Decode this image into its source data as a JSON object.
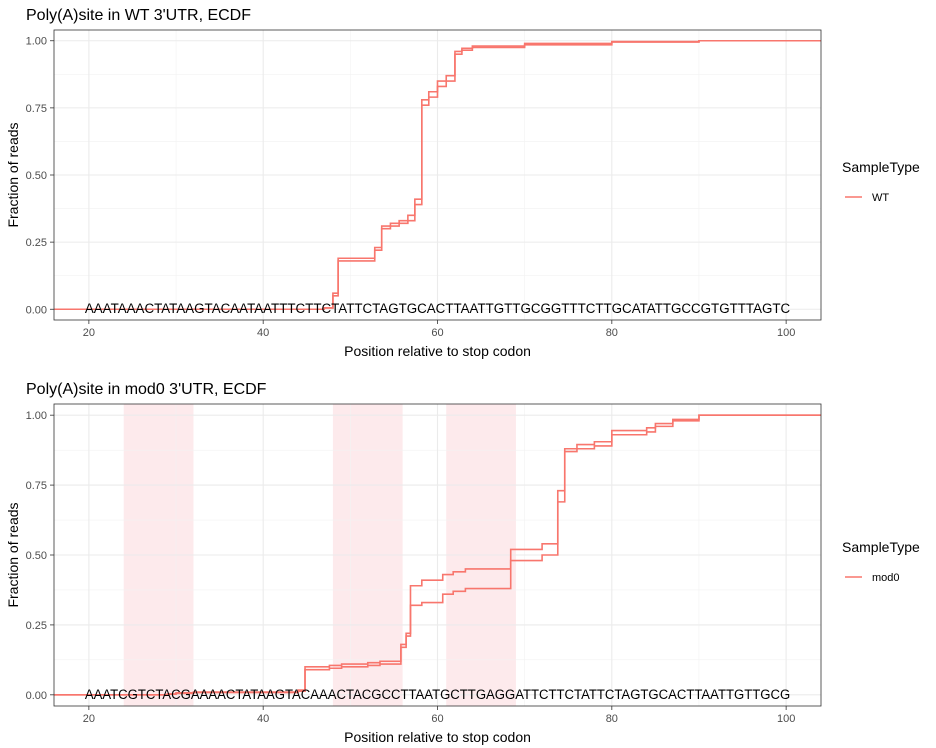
{
  "chart_data": [
    {
      "type": "line",
      "subtype": "step-ecdf",
      "title": "Poly(A)site in WT 3'UTR, ECDF",
      "xlabel": "Position relative to stop codon",
      "ylabel": "Fraction of reads",
      "xlim": [
        16,
        104
      ],
      "ylim": [
        -0.04,
        1.04
      ],
      "x_ticks": [
        20,
        40,
        60,
        80,
        100
      ],
      "x_tick_labels": [
        "20",
        "40",
        "60",
        "80",
        "100"
      ],
      "y_ticks": [
        0,
        0.25,
        0.5,
        0.75,
        1.0
      ],
      "y_tick_labels": [
        "0.00",
        "0.25",
        "0.50",
        "0.75",
        "1.00"
      ],
      "grid": true,
      "legend": {
        "title": "SampleType",
        "position": "right",
        "entries": [
          {
            "label": "WT",
            "color": "#F8766D"
          }
        ]
      },
      "sequence": "AAATAAACTATAAGTACAATAATTTCTTCTATTCTAGTGCACTTAATTGTTGCGGTTTCTTGCATATTGCCGTGTTTAGTC",
      "sequence_x_range": [
        20,
        100
      ],
      "shaded_regions": [],
      "series": [
        {
          "name": "WT",
          "color": "#F8766D",
          "points": [
            [
              16,
              0
            ],
            [
              47,
              0.005
            ],
            [
              48,
              0.05
            ],
            [
              48.6,
              0.18
            ],
            [
              52.8,
              0.22
            ],
            [
              53.6,
              0.3
            ],
            [
              54.6,
              0.31
            ],
            [
              55.6,
              0.32
            ],
            [
              56.6,
              0.33
            ],
            [
              57.4,
              0.39
            ],
            [
              58.2,
              0.76
            ],
            [
              59,
              0.79
            ],
            [
              60,
              0.83
            ],
            [
              61,
              0.85
            ],
            [
              62,
              0.95
            ],
            [
              62.8,
              0.965
            ],
            [
              64,
              0.975
            ],
            [
              70,
              0.985
            ],
            [
              80,
              0.995
            ],
            [
              90,
              1.0
            ],
            [
              104,
              1.0
            ]
          ]
        },
        {
          "name": "WT",
          "color": "#F8766D",
          "points": [
            [
              16,
              0
            ],
            [
              47,
              0.005
            ],
            [
              48,
              0.06
            ],
            [
              48.6,
              0.19
            ],
            [
              52.8,
              0.23
            ],
            [
              53.6,
              0.31
            ],
            [
              54.6,
              0.32
            ],
            [
              55.6,
              0.33
            ],
            [
              56.6,
              0.35
            ],
            [
              57.4,
              0.41
            ],
            [
              58.2,
              0.78
            ],
            [
              59,
              0.81
            ],
            [
              60,
              0.85
            ],
            [
              61,
              0.87
            ],
            [
              62,
              0.96
            ],
            [
              62.8,
              0.972
            ],
            [
              64,
              0.98
            ],
            [
              70,
              0.99
            ],
            [
              80,
              0.997
            ],
            [
              90,
              1.0
            ],
            [
              104,
              1.0
            ]
          ]
        }
      ]
    },
    {
      "type": "line",
      "subtype": "step-ecdf",
      "title": "Poly(A)site in mod0 3'UTR, ECDF",
      "xlabel": "Position relative to stop codon",
      "ylabel": "Fraction of reads",
      "xlim": [
        16,
        104
      ],
      "ylim": [
        -0.04,
        1.04
      ],
      "x_ticks": [
        20,
        40,
        60,
        80,
        100
      ],
      "x_tick_labels": [
        "20",
        "40",
        "60",
        "80",
        "100"
      ],
      "y_ticks": [
        0,
        0.25,
        0.5,
        0.75,
        1.0
      ],
      "y_tick_labels": [
        "0.00",
        "0.25",
        "0.50",
        "0.75",
        "1.00"
      ],
      "grid": true,
      "legend": {
        "title": "SampleType",
        "position": "right",
        "entries": [
          {
            "label": "mod0",
            "color": "#F8766D"
          }
        ]
      },
      "sequence": "AAATCGTCTACGAAAACTATAAGTACAAACTACGCCTTAATGCTTGAGGATTCTTCTATTCTAGTGCACTTAATTGTTGCG",
      "sequence_x_range": [
        20,
        100
      ],
      "shaded_regions": [
        [
          24,
          32
        ],
        [
          48,
          56
        ],
        [
          61,
          69
        ]
      ],
      "series": [
        {
          "name": "mod0",
          "color": "#F8766D",
          "points": [
            [
              16,
              0
            ],
            [
              29,
              0.002
            ],
            [
              30,
              0.005
            ],
            [
              32,
              0.008
            ],
            [
              44,
              0.013
            ],
            [
              44.8,
              0.09
            ],
            [
              47.6,
              0.095
            ],
            [
              49,
              0.1
            ],
            [
              52,
              0.105
            ],
            [
              53.4,
              0.11
            ],
            [
              55.8,
              0.17
            ],
            [
              56.4,
              0.21
            ],
            [
              56.9,
              0.32
            ],
            [
              58.2,
              0.33
            ],
            [
              60.6,
              0.36
            ],
            [
              61.8,
              0.37
            ],
            [
              63.2,
              0.38
            ],
            [
              68.4,
              0.48
            ],
            [
              72,
              0.5
            ],
            [
              73.8,
              0.69
            ],
            [
              74.6,
              0.87
            ],
            [
              76,
              0.88
            ],
            [
              78,
              0.89
            ],
            [
              80,
              0.93
            ],
            [
              84,
              0.94
            ],
            [
              85,
              0.96
            ],
            [
              87,
              0.98
            ],
            [
              90,
              1.0
            ],
            [
              104,
              1.0
            ]
          ]
        },
        {
          "name": "mod0",
          "color": "#F8766D",
          "points": [
            [
              16,
              0
            ],
            [
              29,
              0.003
            ],
            [
              30,
              0.007
            ],
            [
              32,
              0.01
            ],
            [
              44,
              0.017
            ],
            [
              44.8,
              0.1
            ],
            [
              47.6,
              0.105
            ],
            [
              49,
              0.11
            ],
            [
              52,
              0.115
            ],
            [
              53.4,
              0.12
            ],
            [
              55.8,
              0.18
            ],
            [
              56.4,
              0.22
            ],
            [
              56.9,
              0.39
            ],
            [
              58.2,
              0.41
            ],
            [
              60.6,
              0.43
            ],
            [
              61.8,
              0.44
            ],
            [
              63.2,
              0.45
            ],
            [
              68.4,
              0.52
            ],
            [
              72,
              0.54
            ],
            [
              73.8,
              0.73
            ],
            [
              74.6,
              0.88
            ],
            [
              76,
              0.895
            ],
            [
              78,
              0.905
            ],
            [
              80,
              0.945
            ],
            [
              84,
              0.955
            ],
            [
              85,
              0.97
            ],
            [
              87,
              0.985
            ],
            [
              90,
              1.0
            ],
            [
              104,
              1.0
            ]
          ]
        }
      ]
    }
  ]
}
